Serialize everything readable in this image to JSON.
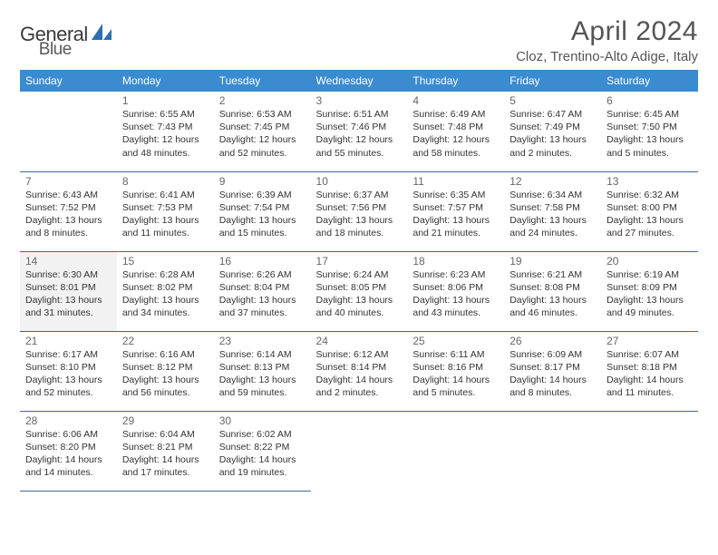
{
  "logo": {
    "text1": "General",
    "text2": "Blue"
  },
  "title": "April 2024",
  "location": "Cloz, Trentino-Alto Adige, Italy",
  "colors": {
    "header_bg": "#3b8bd0",
    "header_fg": "#ffffff",
    "rule": "#3a6a96",
    "shaded": "#f2f2f2",
    "text": "#333333",
    "logo_accent": "#2e6fb0"
  },
  "weekdays": [
    "Sunday",
    "Monday",
    "Tuesday",
    "Wednesday",
    "Thursday",
    "Friday",
    "Saturday"
  ],
  "weeks": [
    [
      null,
      {
        "n": "1",
        "sr": "Sunrise: 6:55 AM",
        "ss": "Sunset: 7:43 PM",
        "d1": "Daylight: 12 hours",
        "d2": "and 48 minutes."
      },
      {
        "n": "2",
        "sr": "Sunrise: 6:53 AM",
        "ss": "Sunset: 7:45 PM",
        "d1": "Daylight: 12 hours",
        "d2": "and 52 minutes."
      },
      {
        "n": "3",
        "sr": "Sunrise: 6:51 AM",
        "ss": "Sunset: 7:46 PM",
        "d1": "Daylight: 12 hours",
        "d2": "and 55 minutes."
      },
      {
        "n": "4",
        "sr": "Sunrise: 6:49 AM",
        "ss": "Sunset: 7:48 PM",
        "d1": "Daylight: 12 hours",
        "d2": "and 58 minutes."
      },
      {
        "n": "5",
        "sr": "Sunrise: 6:47 AM",
        "ss": "Sunset: 7:49 PM",
        "d1": "Daylight: 13 hours",
        "d2": "and 2 minutes."
      },
      {
        "n": "6",
        "sr": "Sunrise: 6:45 AM",
        "ss": "Sunset: 7:50 PM",
        "d1": "Daylight: 13 hours",
        "d2": "and 5 minutes."
      }
    ],
    [
      {
        "n": "7",
        "sr": "Sunrise: 6:43 AM",
        "ss": "Sunset: 7:52 PM",
        "d1": "Daylight: 13 hours",
        "d2": "and 8 minutes."
      },
      {
        "n": "8",
        "sr": "Sunrise: 6:41 AM",
        "ss": "Sunset: 7:53 PM",
        "d1": "Daylight: 13 hours",
        "d2": "and 11 minutes."
      },
      {
        "n": "9",
        "sr": "Sunrise: 6:39 AM",
        "ss": "Sunset: 7:54 PM",
        "d1": "Daylight: 13 hours",
        "d2": "and 15 minutes."
      },
      {
        "n": "10",
        "sr": "Sunrise: 6:37 AM",
        "ss": "Sunset: 7:56 PM",
        "d1": "Daylight: 13 hours",
        "d2": "and 18 minutes."
      },
      {
        "n": "11",
        "sr": "Sunrise: 6:35 AM",
        "ss": "Sunset: 7:57 PM",
        "d1": "Daylight: 13 hours",
        "d2": "and 21 minutes."
      },
      {
        "n": "12",
        "sr": "Sunrise: 6:34 AM",
        "ss": "Sunset: 7:58 PM",
        "d1": "Daylight: 13 hours",
        "d2": "and 24 minutes."
      },
      {
        "n": "13",
        "sr": "Sunrise: 6:32 AM",
        "ss": "Sunset: 8:00 PM",
        "d1": "Daylight: 13 hours",
        "d2": "and 27 minutes."
      }
    ],
    [
      {
        "n": "14",
        "sr": "Sunrise: 6:30 AM",
        "ss": "Sunset: 8:01 PM",
        "d1": "Daylight: 13 hours",
        "d2": "and 31 minutes.",
        "shaded": true
      },
      {
        "n": "15",
        "sr": "Sunrise: 6:28 AM",
        "ss": "Sunset: 8:02 PM",
        "d1": "Daylight: 13 hours",
        "d2": "and 34 minutes."
      },
      {
        "n": "16",
        "sr": "Sunrise: 6:26 AM",
        "ss": "Sunset: 8:04 PM",
        "d1": "Daylight: 13 hours",
        "d2": "and 37 minutes."
      },
      {
        "n": "17",
        "sr": "Sunrise: 6:24 AM",
        "ss": "Sunset: 8:05 PM",
        "d1": "Daylight: 13 hours",
        "d2": "and 40 minutes."
      },
      {
        "n": "18",
        "sr": "Sunrise: 6:23 AM",
        "ss": "Sunset: 8:06 PM",
        "d1": "Daylight: 13 hours",
        "d2": "and 43 minutes."
      },
      {
        "n": "19",
        "sr": "Sunrise: 6:21 AM",
        "ss": "Sunset: 8:08 PM",
        "d1": "Daylight: 13 hours",
        "d2": "and 46 minutes."
      },
      {
        "n": "20",
        "sr": "Sunrise: 6:19 AM",
        "ss": "Sunset: 8:09 PM",
        "d1": "Daylight: 13 hours",
        "d2": "and 49 minutes."
      }
    ],
    [
      {
        "n": "21",
        "sr": "Sunrise: 6:17 AM",
        "ss": "Sunset: 8:10 PM",
        "d1": "Daylight: 13 hours",
        "d2": "and 52 minutes."
      },
      {
        "n": "22",
        "sr": "Sunrise: 6:16 AM",
        "ss": "Sunset: 8:12 PM",
        "d1": "Daylight: 13 hours",
        "d2": "and 56 minutes."
      },
      {
        "n": "23",
        "sr": "Sunrise: 6:14 AM",
        "ss": "Sunset: 8:13 PM",
        "d1": "Daylight: 13 hours",
        "d2": "and 59 minutes."
      },
      {
        "n": "24",
        "sr": "Sunrise: 6:12 AM",
        "ss": "Sunset: 8:14 PM",
        "d1": "Daylight: 14 hours",
        "d2": "and 2 minutes."
      },
      {
        "n": "25",
        "sr": "Sunrise: 6:11 AM",
        "ss": "Sunset: 8:16 PM",
        "d1": "Daylight: 14 hours",
        "d2": "and 5 minutes."
      },
      {
        "n": "26",
        "sr": "Sunrise: 6:09 AM",
        "ss": "Sunset: 8:17 PM",
        "d1": "Daylight: 14 hours",
        "d2": "and 8 minutes."
      },
      {
        "n": "27",
        "sr": "Sunrise: 6:07 AM",
        "ss": "Sunset: 8:18 PM",
        "d1": "Daylight: 14 hours",
        "d2": "and 11 minutes."
      }
    ],
    [
      {
        "n": "28",
        "sr": "Sunrise: 6:06 AM",
        "ss": "Sunset: 8:20 PM",
        "d1": "Daylight: 14 hours",
        "d2": "and 14 minutes."
      },
      {
        "n": "29",
        "sr": "Sunrise: 6:04 AM",
        "ss": "Sunset: 8:21 PM",
        "d1": "Daylight: 14 hours",
        "d2": "and 17 minutes."
      },
      {
        "n": "30",
        "sr": "Sunrise: 6:02 AM",
        "ss": "Sunset: 8:22 PM",
        "d1": "Daylight: 14 hours",
        "d2": "and 19 minutes."
      },
      null,
      null,
      null,
      null
    ]
  ]
}
